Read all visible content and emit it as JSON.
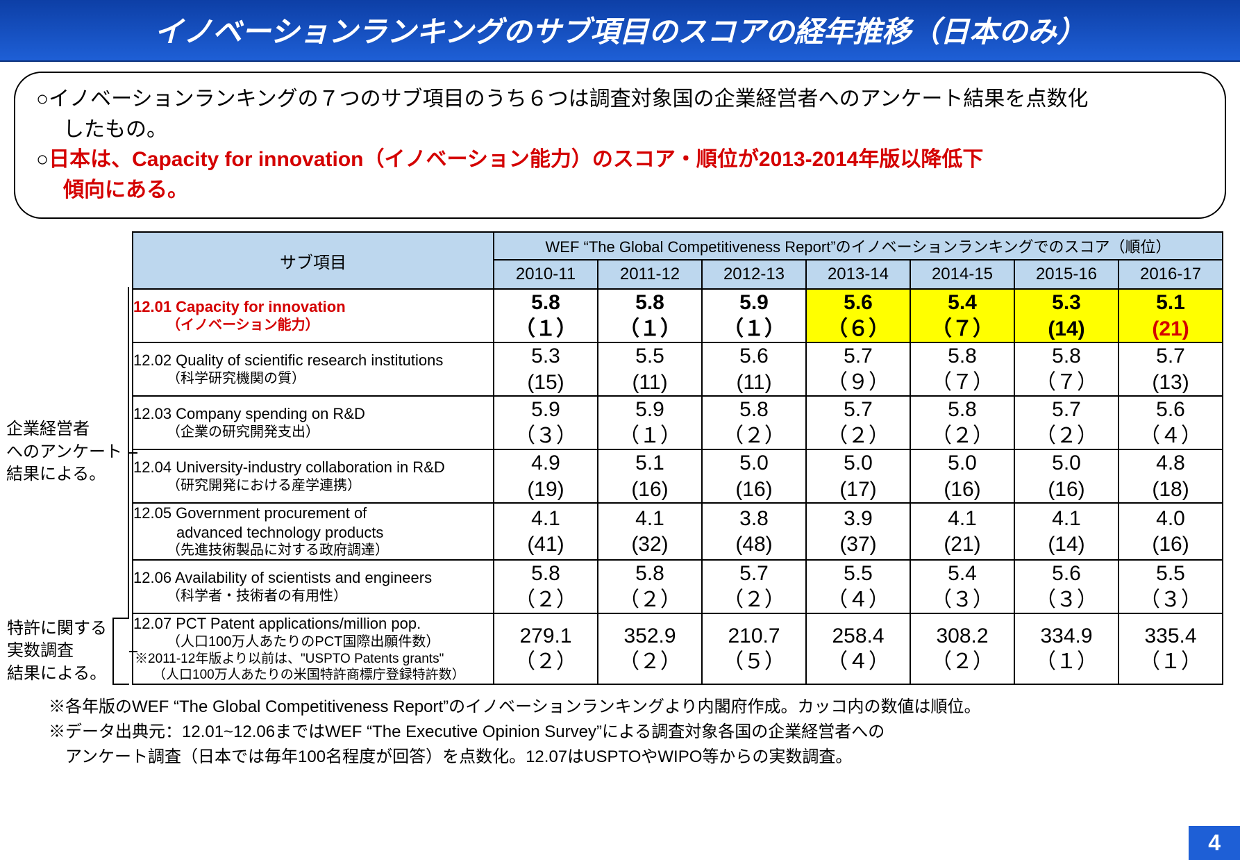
{
  "colors": {
    "title_bg_top": "#0d3fa6",
    "title_bg_bottom": "#1e5fd6",
    "title_text": "#ffffff",
    "header_bg": "#bdd7ee",
    "border": "#000000",
    "highlight": "#ffff00",
    "emphasis_red": "#d40000",
    "page_bg": "#ffffff",
    "badge_bg": "#1e5fd6"
  },
  "title": "イノベーションランキングのサブ項目のスコアの経年推移（日本のみ）",
  "summary": {
    "line1_prefix": "○イノベーションランキングの７つのサブ項目のうち６つは調査対象国の企業経営者へのアンケート結果を点数化",
    "line1_cont": "したもの。",
    "line2_prefix": "○",
    "line2_red": "日本は、Capacity for innovation（イノベーション能力）のスコア・順位が2013-2014年版以降低下",
    "line2_cont_red": "傾向にある。"
  },
  "side_notes": {
    "survey": "企業経営者\nへのアンケート\n結果による。",
    "patent": "特許に関する\n実数調査\n結果による。"
  },
  "table": {
    "super_header": "WEF “The Global Competitiveness Report”のイノベーションランキングでのスコア（順位）",
    "sub_header": "サブ項目",
    "years": [
      "2010-11",
      "2011-12",
      "2012-13",
      "2013-14",
      "2014-15",
      "2015-16",
      "2016-17"
    ],
    "rows": [
      {
        "id": "12.01",
        "en": "12.01 Capacity for innovation",
        "jp": "（イノベーション能力）",
        "en_red": true,
        "cells": [
          {
            "score": "5.8",
            "rank": "（１）",
            "hl": false,
            "rank_red": false
          },
          {
            "score": "5.8",
            "rank": "（１）",
            "hl": false,
            "rank_red": false
          },
          {
            "score": "5.9",
            "rank": "（１）",
            "hl": false,
            "rank_red": false
          },
          {
            "score": "5.6",
            "rank": "（６）",
            "hl": true,
            "rank_red": false
          },
          {
            "score": "5.4",
            "rank": "（７）",
            "hl": true,
            "rank_red": false
          },
          {
            "score": "5.3",
            "rank": "(14)",
            "hl": true,
            "rank_red": false
          },
          {
            "score": "5.1",
            "rank": "(21)",
            "hl": true,
            "rank_red": true
          }
        ]
      },
      {
        "id": "12.02",
        "en": "12.02 Quality of scientific research institutions",
        "jp": "（科学研究機関の質）",
        "cells": [
          {
            "score": "5.3",
            "rank": "(15)"
          },
          {
            "score": "5.5",
            "rank": "(11)"
          },
          {
            "score": "5.6",
            "rank": "(11)"
          },
          {
            "score": "5.7",
            "rank": "（９）"
          },
          {
            "score": "5.8",
            "rank": "（７）"
          },
          {
            "score": "5.8",
            "rank": "（７）"
          },
          {
            "score": "5.7",
            "rank": "(13)"
          }
        ]
      },
      {
        "id": "12.03",
        "en": "12.03 Company spending on R&D",
        "jp": "（企業の研究開発支出）",
        "cells": [
          {
            "score": "5.9",
            "rank": "（３）"
          },
          {
            "score": "5.9",
            "rank": "（１）"
          },
          {
            "score": "5.8",
            "rank": "（２）"
          },
          {
            "score": "5.7",
            "rank": "（２）"
          },
          {
            "score": "5.8",
            "rank": "（２）"
          },
          {
            "score": "5.7",
            "rank": "（２）"
          },
          {
            "score": "5.6",
            "rank": "（４）"
          }
        ]
      },
      {
        "id": "12.04",
        "en": "12.04 University-industry collaboration in R&D",
        "jp": "（研究開発における産学連携）",
        "cells": [
          {
            "score": "4.9",
            "rank": "(19)"
          },
          {
            "score": "5.1",
            "rank": "(16)"
          },
          {
            "score": "5.0",
            "rank": "(16)"
          },
          {
            "score": "5.0",
            "rank": "(17)"
          },
          {
            "score": "5.0",
            "rank": "(16)"
          },
          {
            "score": "5.0",
            "rank": "(16)"
          },
          {
            "score": "4.8",
            "rank": "(18)"
          }
        ]
      },
      {
        "id": "12.05",
        "en": "12.05 Government procurement of",
        "en2": "advanced technology products",
        "jp": "（先進技術製品に対する政府調達）",
        "cells": [
          {
            "score": "4.1",
            "rank": "(41)"
          },
          {
            "score": "4.1",
            "rank": "(32)"
          },
          {
            "score": "3.8",
            "rank": "(48)"
          },
          {
            "score": "3.9",
            "rank": "(37)"
          },
          {
            "score": "4.1",
            "rank": "(21)"
          },
          {
            "score": "4.1",
            "rank": "(14)"
          },
          {
            "score": "4.0",
            "rank": "(16)"
          }
        ]
      },
      {
        "id": "12.06",
        "en": "12.06 Availability of scientists and engineers",
        "jp": "（科学者・技術者の有用性）",
        "cells": [
          {
            "score": "5.8",
            "rank": "（２）"
          },
          {
            "score": "5.8",
            "rank": "（２）"
          },
          {
            "score": "5.7",
            "rank": "（２）"
          },
          {
            "score": "5.5",
            "rank": "（４）"
          },
          {
            "score": "5.4",
            "rank": "（３）"
          },
          {
            "score": "5.6",
            "rank": "（３）"
          },
          {
            "score": "5.5",
            "rank": "（３）"
          }
        ]
      },
      {
        "id": "12.07",
        "en": "12.07 PCT Patent applications/million pop.",
        "jp": "（人口100万人あたりのPCT国際出願件数）",
        "note1": "※2011-12年版より以前は、\"USPTO Patents grants\"",
        "note2": "（人口100万人あたりの米国特許商標庁登録特許数）",
        "cells": [
          {
            "score": "279.1",
            "rank": "（２）"
          },
          {
            "score": "352.9",
            "rank": "（２）"
          },
          {
            "score": "210.7",
            "rank": "（５）"
          },
          {
            "score": "258.4",
            "rank": "（４）"
          },
          {
            "score": "308.2",
            "rank": "（２）"
          },
          {
            "score": "334.9",
            "rank": "（１）"
          },
          {
            "score": "335.4",
            "rank": "（１）"
          }
        ]
      }
    ]
  },
  "footnotes": [
    "※各年版のWEF “The Global Competitiveness Report”のイノベーションランキングより内閣府作成。カッコ内の数値は順位。",
    "※データ出典元：12.01~12.06まではWEF “The Executive Opinion Survey”による調査対象各国の企業経営者への",
    "　アンケート調査（日本では毎年100名程度が回答）を点数化。12.07はUSPTOやWIPO等からの実数調査。"
  ],
  "page_number": "4"
}
